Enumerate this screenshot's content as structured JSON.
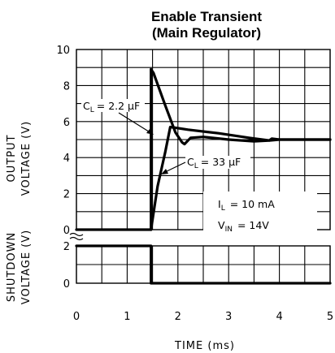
{
  "chart_data": {
    "type": "line",
    "title_line1": "Enable Transient",
    "title_line2": "(Main Regulator)",
    "xlabel": "TIME (ms)",
    "x_ticks": [
      "0",
      "1",
      "2",
      "3",
      "4",
      "5"
    ],
    "xlim": [
      0,
      5
    ],
    "upper_ylabel_line1": "OUTPUT",
    "upper_ylabel_line2": "VOLTAGE (V)",
    "upper_y_ticks": [
      "0",
      "2",
      "4",
      "6",
      "8",
      "10"
    ],
    "upper_ylim": [
      0,
      10
    ],
    "lower_ylabel_line1": "SHUTDOWN",
    "lower_ylabel_line2": "VOLTAGE (V)",
    "lower_y_ticks": [
      "0",
      "2"
    ],
    "lower_ylim": [
      0,
      2
    ],
    "grid": true,
    "series": [
      {
        "name": "CL = 2.2 µF",
        "panel": "upper",
        "x": [
          0,
          1.47,
          1.47,
          1.52,
          1.75,
          1.95,
          2.08,
          2.13,
          2.25,
          2.5,
          3.0,
          3.5,
          3.8,
          3.85,
          4.0,
          5.0
        ],
        "y": [
          0,
          0,
          8.9,
          8.7,
          6.9,
          5.4,
          4.85,
          4.75,
          5.1,
          5.15,
          5.0,
          4.9,
          4.95,
          5.05,
          5.0,
          5.0
        ]
      },
      {
        "name": "CL = 33 µF",
        "panel": "upper",
        "x": [
          1.47,
          1.6,
          1.75,
          1.85,
          2.2,
          2.8,
          3.4,
          3.8,
          4.0,
          5.0
        ],
        "y": [
          0,
          2.4,
          4.3,
          5.7,
          5.55,
          5.35,
          5.1,
          4.95,
          5.0,
          5.0
        ]
      },
      {
        "name": "Shutdown",
        "panel": "lower",
        "x": [
          0,
          1.47,
          1.47,
          5.0
        ],
        "y": [
          2,
          2,
          0,
          0
        ]
      }
    ],
    "annotations": {
      "cl_small_label": "C",
      "cl_small_sub": "L",
      "cl_small_value": "= 2.2 µF",
      "cl_large_label": "C",
      "cl_large_sub": "L",
      "cl_large_value": "= 33 µF",
      "il_label": "I",
      "il_sub": "L",
      "il_value": "= 10 mA",
      "vin_label": "V",
      "vin_sub": "IN",
      "vin_value": "= 14V"
    }
  }
}
